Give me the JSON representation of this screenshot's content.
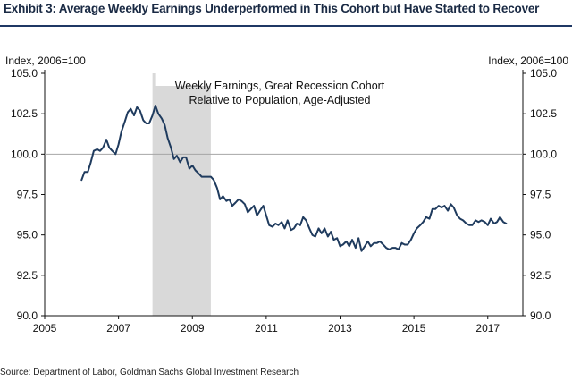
{
  "header": {
    "title": "Exhibit 3: Average Weekly Earnings Underperformed in This Cohort but Have Started to Recover"
  },
  "footer": {
    "source": "Source: Department of Labor, Goldman Sachs Global Investment Research"
  },
  "colors": {
    "line": "#1f3b5e",
    "recession_shade": "#d9d9d9",
    "rule": "#1f3864",
    "reference_line": "#a6a6a6"
  },
  "chart_data": {
    "type": "line",
    "left_axis_label": "Index, 2006=100",
    "right_axis_label": "Index, 2006=100",
    "annotation": [
      "Weekly Earnings, Great Recession Cohort",
      "Relative to Population, Age-Adjusted"
    ],
    "xlim": [
      2005,
      2017.95
    ],
    "ylim": [
      90,
      105
    ],
    "x_ticks": [
      2005,
      2007,
      2009,
      2011,
      2013,
      2015,
      2017
    ],
    "y_ticks": [
      "90.0",
      "92.5",
      "95.0",
      "97.5",
      "100.0",
      "102.5",
      "105.0"
    ],
    "reference_line_y": 100,
    "recession_shading": [
      2007.92,
      2009.5
    ],
    "grid": false,
    "series": [
      {
        "x": [
          2006.0,
          2006.08,
          2006.17,
          2006.25,
          2006.33,
          2006.42,
          2006.5,
          2006.58,
          2006.67,
          2006.75,
          2006.83,
          2006.92,
          2007.0,
          2007.08,
          2007.17,
          2007.25,
          2007.33,
          2007.42,
          2007.5,
          2007.58,
          2007.67,
          2007.75,
          2007.83,
          2007.92,
          2008.0,
          2008.08,
          2008.17,
          2008.25,
          2008.33,
          2008.42,
          2008.5,
          2008.58,
          2008.67,
          2008.75,
          2008.83,
          2008.92,
          2009.0,
          2009.08,
          2009.17,
          2009.25,
          2009.33,
          2009.42,
          2009.5,
          2009.58,
          2009.67,
          2009.75,
          2009.83,
          2009.92,
          2010.0,
          2010.08,
          2010.17,
          2010.25,
          2010.33,
          2010.42,
          2010.5,
          2010.58,
          2010.67,
          2010.75,
          2010.83,
          2010.92,
          2011.0,
          2011.08,
          2011.17,
          2011.25,
          2011.33,
          2011.42,
          2011.5,
          2011.58,
          2011.67,
          2011.75,
          2011.83,
          2011.92,
          2012.0,
          2012.08,
          2012.17,
          2012.25,
          2012.33,
          2012.42,
          2012.5,
          2012.58,
          2012.67,
          2012.75,
          2012.83,
          2012.92,
          2013.0,
          2013.08,
          2013.17,
          2013.25,
          2013.33,
          2013.42,
          2013.5,
          2013.58,
          2013.67,
          2013.75,
          2013.83,
          2013.92,
          2014.0,
          2014.08,
          2014.17,
          2014.25,
          2014.33,
          2014.42,
          2014.5,
          2014.58,
          2014.67,
          2014.75,
          2014.83,
          2014.92,
          2015.0,
          2015.08,
          2015.17,
          2015.25,
          2015.33,
          2015.42,
          2015.5,
          2015.58,
          2015.67,
          2015.75,
          2015.83,
          2015.92,
          2016.0,
          2016.08,
          2016.17,
          2016.25,
          2016.33,
          2016.42,
          2016.5,
          2016.58,
          2016.67,
          2016.75,
          2016.83,
          2016.92,
          2017.0,
          2017.08,
          2017.17,
          2017.25,
          2017.33,
          2017.42,
          2017.5
        ],
        "values": [
          98.4,
          98.9,
          98.9,
          99.5,
          100.2,
          100.3,
          100.2,
          100.4,
          100.9,
          100.4,
          100.2,
          100.0,
          100.6,
          101.4,
          102.0,
          102.6,
          102.8,
          102.4,
          102.9,
          102.7,
          102.1,
          101.9,
          101.9,
          102.4,
          103.0,
          102.5,
          102.2,
          101.8,
          101.0,
          100.4,
          99.7,
          99.9,
          99.5,
          99.8,
          99.8,
          99.1,
          99.3,
          99.0,
          98.8,
          98.6,
          98.6,
          98.6,
          98.6,
          98.4,
          97.9,
          97.2,
          97.4,
          97.1,
          97.2,
          96.8,
          97.0,
          97.2,
          97.1,
          96.9,
          96.4,
          96.6,
          96.8,
          96.2,
          96.5,
          96.8,
          96.2,
          95.6,
          95.5,
          95.7,
          95.6,
          95.8,
          95.4,
          95.9,
          95.3,
          95.4,
          95.7,
          95.6,
          96.1,
          95.9,
          95.4,
          95.0,
          94.9,
          95.4,
          95.1,
          95.4,
          94.9,
          95.2,
          94.7,
          94.8,
          94.3,
          94.4,
          94.6,
          94.3,
          94.7,
          94.2,
          94.8,
          94.0,
          94.3,
          94.6,
          94.3,
          94.5,
          94.5,
          94.6,
          94.4,
          94.2,
          94.1,
          94.2,
          94.2,
          94.1,
          94.5,
          94.4,
          94.4,
          94.7,
          95.1,
          95.4,
          95.6,
          95.8,
          96.1,
          96.0,
          96.6,
          96.6,
          96.8,
          96.7,
          96.8,
          96.5,
          96.9,
          96.7,
          96.2,
          96.0,
          95.9,
          95.7,
          95.6,
          95.6,
          95.9,
          95.8,
          95.9,
          95.8,
          95.6,
          96.0,
          95.7,
          95.8,
          96.1,
          95.8,
          95.7
        ]
      }
    ]
  }
}
